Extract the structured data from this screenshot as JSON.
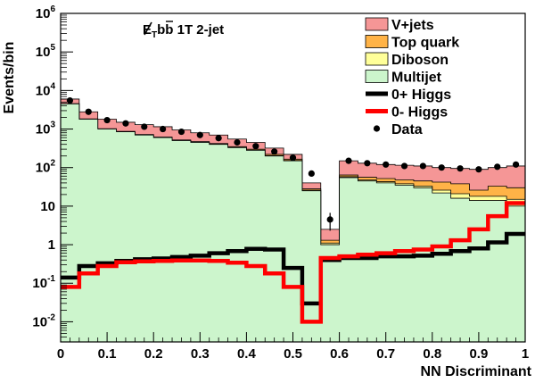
{
  "chart_data": {
    "type": "area",
    "title": "E̸_T bb̄ 1T 2-jet",
    "title_parts": {
      "met": "E",
      "met_sub": "T",
      "b1": "b",
      "b2": "b",
      "rest": " 1T 2-jet"
    },
    "xlabel": "NN Discriminant",
    "ylabel": "Events/bin",
    "xlim": [
      0,
      1
    ],
    "ylim": [
      0.003,
      1000000
    ],
    "yscale": "log",
    "x_ticks": [
      {
        "v": 0,
        "label": "0"
      },
      {
        "v": 0.1,
        "label": "0.1"
      },
      {
        "v": 0.2,
        "label": "0.2"
      },
      {
        "v": 0.3,
        "label": "0.3"
      },
      {
        "v": 0.4,
        "label": "0.4"
      },
      {
        "v": 0.5,
        "label": "0.5"
      },
      {
        "v": 0.6,
        "label": "0.6"
      },
      {
        "v": 0.7,
        "label": "0.7"
      },
      {
        "v": 0.8,
        "label": "0.8"
      },
      {
        "v": 0.9,
        "label": "0.9"
      },
      {
        "v": 1,
        "label": "1"
      }
    ],
    "y_ticks": [
      {
        "v": 0.01,
        "base": "10",
        "exp": "-2"
      },
      {
        "v": 0.1,
        "base": "10",
        "exp": "-1"
      },
      {
        "v": 1,
        "base": "1",
        "exp": ""
      },
      {
        "v": 10,
        "base": "10",
        "exp": ""
      },
      {
        "v": 100,
        "base": "10",
        "exp": "2"
      },
      {
        "v": 1000,
        "base": "10",
        "exp": "3"
      },
      {
        "v": 10000,
        "base": "10",
        "exp": "4"
      },
      {
        "v": 100000,
        "base": "10",
        "exp": "5"
      },
      {
        "v": 1000000,
        "base": "10",
        "exp": "6"
      }
    ],
    "grid": false,
    "legend_position": "top-right",
    "bin_edges": [
      0,
      0.04,
      0.08,
      0.12,
      0.16,
      0.2,
      0.24,
      0.28,
      0.32,
      0.36,
      0.4,
      0.44,
      0.48,
      0.52,
      0.56,
      0.6,
      0.64,
      0.68,
      0.72,
      0.76,
      0.8,
      0.84,
      0.88,
      0.92,
      0.96,
      1.0
    ],
    "stack": [
      {
        "name": "Multijet",
        "color": "#ccf5cc",
        "values": [
          4500,
          1800,
          1000,
          850,
          700,
          600,
          500,
          450,
          400,
          330,
          280,
          200,
          150,
          25,
          1.0,
          55,
          45,
          40,
          35,
          30,
          22,
          16,
          14,
          14,
          10
        ]
      },
      {
        "name": "Diboson",
        "color": "#ffff99",
        "values": [
          4510,
          1805,
          1003,
          853,
          703,
          603,
          503,
          453,
          403,
          333,
          283,
          203,
          153,
          26,
          1.1,
          58,
          48,
          43,
          38,
          33,
          26,
          21,
          18,
          18,
          15
        ]
      },
      {
        "name": "Top quark",
        "color": "#ffb347",
        "values": [
          4550,
          1830,
          1020,
          870,
          720,
          620,
          520,
          470,
          420,
          350,
          300,
          220,
          165,
          28,
          1.3,
          64,
          56,
          52,
          48,
          45,
          42,
          38,
          26,
          33,
          30
        ]
      },
      {
        "name": "V+jets",
        "color": "#f59696",
        "values": [
          6000,
          2800,
          1800,
          1500,
          1300,
          1150,
          950,
          800,
          700,
          550,
          450,
          320,
          220,
          40,
          2.5,
          150,
          130,
          120,
          115,
          110,
          100,
          95,
          90,
          100,
          110
        ]
      }
    ],
    "series": [
      {
        "name": "0+ Higgs",
        "color": "#000000",
        "values": [
          0.14,
          0.28,
          0.33,
          0.38,
          0.42,
          0.44,
          0.48,
          0.52,
          0.6,
          0.68,
          0.78,
          0.75,
          0.25,
          0.03,
          0.4,
          0.45,
          0.45,
          0.5,
          0.5,
          0.52,
          0.58,
          0.68,
          0.8,
          1.15,
          1.9
        ]
      },
      {
        "name": "0- Higgs",
        "color": "#ff0000",
        "values": [
          0.08,
          0.18,
          0.28,
          0.35,
          0.37,
          0.38,
          0.39,
          0.39,
          0.38,
          0.34,
          0.28,
          0.18,
          0.08,
          0.01,
          0.45,
          0.5,
          0.55,
          0.6,
          0.68,
          0.75,
          0.9,
          1.3,
          2.5,
          5.5,
          12
        ]
      }
    ],
    "data_points": {
      "name": "Data",
      "color": "#000000",
      "x": [
        0.02,
        0.06,
        0.1,
        0.14,
        0.18,
        0.22,
        0.26,
        0.3,
        0.34,
        0.38,
        0.42,
        0.46,
        0.5,
        0.54,
        0.58,
        0.62,
        0.66,
        0.7,
        0.74,
        0.78,
        0.82,
        0.86,
        0.9,
        0.94,
        0.98
      ],
      "y": [
        5500,
        2800,
        1700,
        1400,
        1150,
        1000,
        850,
        700,
        580,
        450,
        360,
        260,
        180,
        70,
        4.5,
        150,
        130,
        120,
        110,
        110,
        100,
        95,
        90,
        105,
        120
      ],
      "err": [
        80,
        55,
        42,
        38,
        34,
        32,
        29,
        27,
        24,
        21,
        19,
        16,
        14,
        9,
        2.2,
        12,
        11,
        11,
        10,
        10,
        10,
        10,
        10,
        10,
        11
      ]
    },
    "legend": [
      {
        "label": "V+jets",
        "kind": "box",
        "color": "#f59696"
      },
      {
        "label": "Top quark",
        "kind": "box",
        "color": "#ffb347"
      },
      {
        "label": "Diboson",
        "kind": "box",
        "color": "#ffff99"
      },
      {
        "label": "Multijet",
        "kind": "box",
        "color": "#ccf5cc"
      },
      {
        "label": "0+ Higgs",
        "kind": "line",
        "color": "#000000"
      },
      {
        "label": "0- Higgs",
        "kind": "line",
        "color": "#ff0000"
      },
      {
        "label": "Data",
        "kind": "point",
        "color": "#000000"
      }
    ]
  }
}
